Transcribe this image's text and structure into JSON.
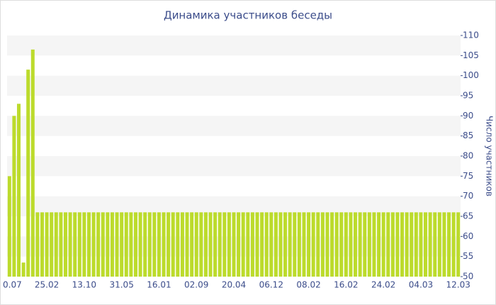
{
  "chart_data": {
    "type": "bar",
    "title": "Динамика участников беседы",
    "y_label": "Число участников",
    "categories": [
      "0.07",
      null,
      null,
      null,
      null,
      null,
      null,
      null,
      "25.02",
      null,
      null,
      null,
      null,
      null,
      null,
      null,
      "13.10",
      null,
      null,
      null,
      null,
      null,
      null,
      null,
      "31.05",
      null,
      null,
      null,
      null,
      null,
      null,
      null,
      "16.01",
      null,
      null,
      null,
      null,
      null,
      null,
      null,
      "02.09",
      null,
      null,
      null,
      null,
      null,
      null,
      null,
      "20.04",
      null,
      null,
      null,
      null,
      null,
      null,
      null,
      "06.12",
      null,
      null,
      null,
      null,
      null,
      null,
      null,
      "08.02",
      null,
      null,
      null,
      null,
      null,
      null,
      null,
      "16.02",
      null,
      null,
      null,
      null,
      null,
      null,
      null,
      "24.02",
      null,
      null,
      null,
      null,
      null,
      null,
      null,
      "04.03",
      null,
      null,
      null,
      null,
      null,
      null,
      null,
      "12.03"
    ],
    "values": [
      75,
      90,
      93,
      53.5,
      101.5,
      106.5,
      66,
      66,
      66,
      66,
      66,
      66,
      66,
      66,
      66,
      66,
      66,
      66,
      66,
      66,
      66,
      66,
      66,
      66,
      66,
      66,
      66,
      66,
      66,
      66,
      66,
      66,
      66,
      66,
      66,
      66,
      66,
      66,
      66,
      66,
      66,
      66,
      66,
      66,
      66,
      66,
      66,
      66,
      66,
      66,
      66,
      66,
      66,
      66,
      66,
      66,
      66,
      66,
      66,
      66,
      66,
      66,
      66,
      66,
      66,
      66,
      66,
      66,
      66,
      66,
      66,
      66,
      66,
      66,
      66,
      66,
      66,
      66,
      66,
      66,
      66,
      66,
      66,
      66,
      66,
      66,
      66,
      66,
      66,
      66,
      66,
      66,
      66,
      66,
      66,
      66,
      66
    ],
    "color": "#bcdb2c",
    "band_color": "#f5f5f5",
    "ylim": [
      50,
      110
    ],
    "yticks": [
      50,
      55,
      60,
      65,
      70,
      75,
      80,
      85,
      90,
      95,
      100,
      105,
      110
    ]
  }
}
